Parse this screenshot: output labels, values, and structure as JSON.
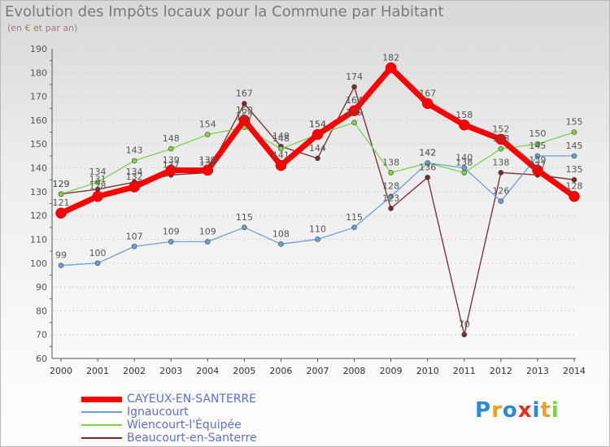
{
  "chart_data": {
    "type": "line",
    "title": "Evolution des Impôts locaux pour la Commune par Habitant",
    "subtitle": "(en € et par an)",
    "x": [
      "2000",
      "2001",
      "2002",
      "2003",
      "2004",
      "2005",
      "2006",
      "2007",
      "2008",
      "2009",
      "2010",
      "2011",
      "2012",
      "2013",
      "2014"
    ],
    "ylim": [
      60,
      190
    ],
    "yticks": [
      60,
      70,
      80,
      90,
      100,
      110,
      120,
      130,
      140,
      150,
      160,
      170,
      180,
      190
    ],
    "series": [
      {
        "name": "CAYEUX-EN-SANTERRE",
        "color": "#ff0000",
        "values": [
          121,
          128,
          132,
          139,
          139,
          160,
          141,
          154,
          164,
          182,
          167,
          158,
          152,
          139,
          128
        ]
      },
      {
        "name": "Ignaucourt",
        "color": "#6aa0d8",
        "values": [
          99,
          100,
          107,
          109,
          109,
          115,
          108,
          110,
          115,
          128,
          142,
          140,
          126,
          145,
          145
        ]
      },
      {
        "name": "Wiencourt-l'Équipée",
        "color": "#7ad44a",
        "values": [
          129,
          134,
          143,
          148,
          154,
          157,
          148,
          154,
          159,
          138,
          142,
          138,
          148,
          150,
          155
        ]
      },
      {
        "name": "Beaucourt-en-Santerre",
        "color": "#7a2a2a",
        "values": [
          129,
          131,
          134,
          137,
          138,
          167,
          149,
          144,
          174,
          123,
          136,
          70,
          138,
          137,
          135
        ]
      }
    ]
  },
  "brand": {
    "text": "Proxiti",
    "colors": [
      "#2a8ad8",
      "#f0a020",
      "#2a8ad8",
      "#e03020",
      "#2a8ad8",
      "#f0a020",
      "#7ad44a"
    ]
  }
}
